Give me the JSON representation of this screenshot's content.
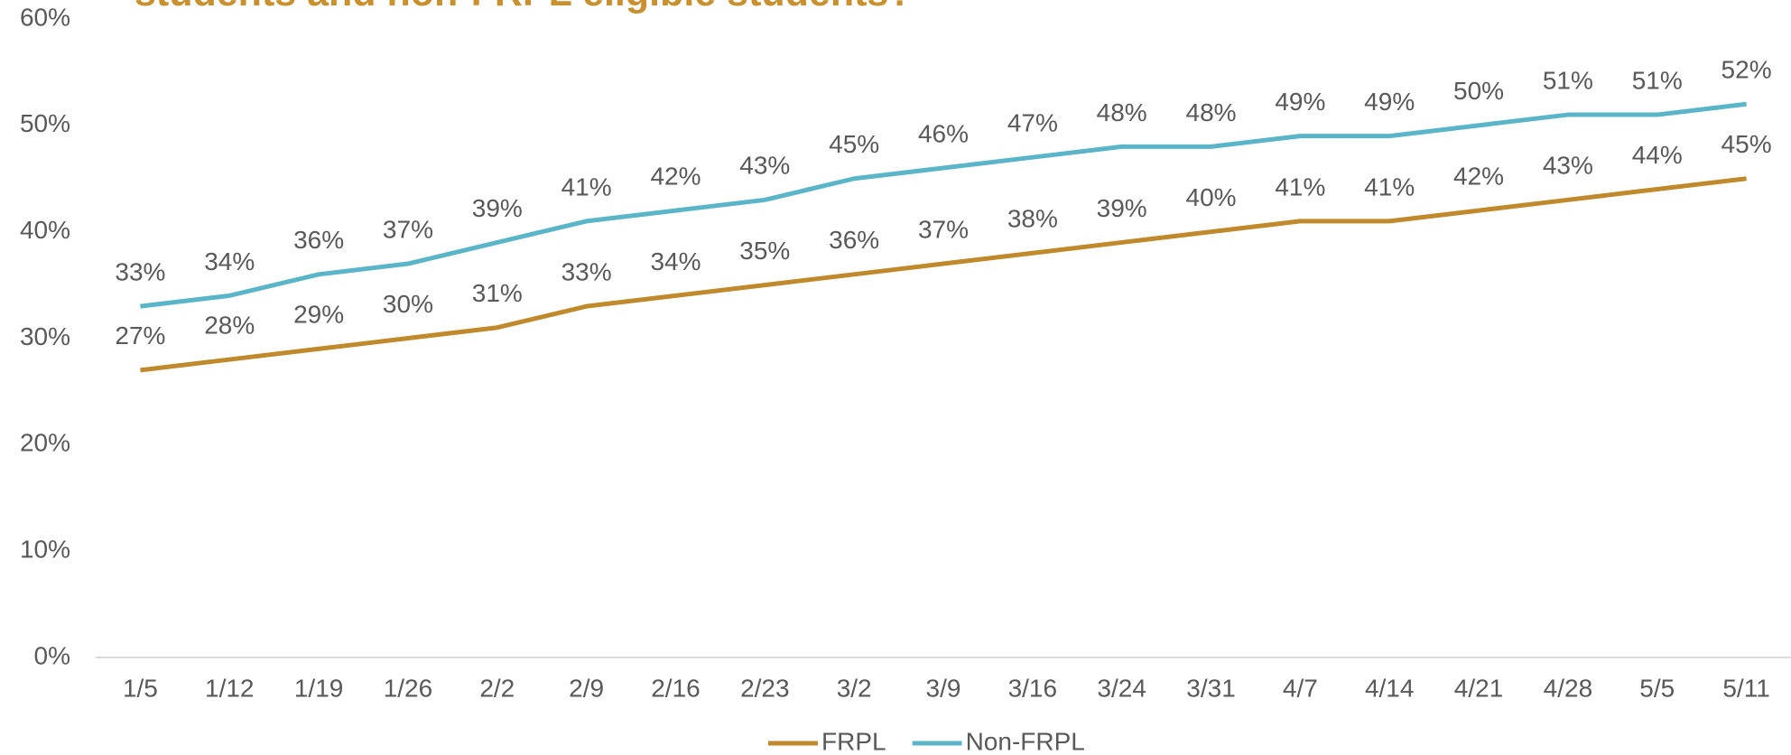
{
  "chart_data": {
    "type": "line",
    "title": "students and non-FRPL eligible students?",
    "categories": [
      "1/5",
      "1/12",
      "1/19",
      "1/26",
      "2/2",
      "2/9",
      "2/16",
      "2/23",
      "3/2",
      "3/9",
      "3/16",
      "3/24",
      "3/31",
      "4/7",
      "4/14",
      "4/21",
      "4/28",
      "5/5",
      "5/11"
    ],
    "series": [
      {
        "name": "FRPL",
        "color": "#c0892b",
        "values": [
          27,
          28,
          29,
          30,
          31,
          33,
          34,
          35,
          36,
          37,
          38,
          39,
          40,
          41,
          41,
          42,
          43,
          44,
          45
        ],
        "value_labels": [
          "27%",
          "28%",
          "29%",
          "30%",
          "31%",
          "33%",
          "34%",
          "35%",
          "36%",
          "37%",
          "38%",
          "39%",
          "40%",
          "41%",
          "41%",
          "42%",
          "43%",
          "44%",
          "45%"
        ]
      },
      {
        "name": "Non-FRPL",
        "color": "#5bb5c8",
        "values": [
          33,
          34,
          36,
          37,
          39,
          41,
          42,
          43,
          45,
          46,
          47,
          48,
          48,
          49,
          49,
          50,
          51,
          51,
          52
        ],
        "value_labels": [
          "33%",
          "34%",
          "36%",
          "37%",
          "39%",
          "41%",
          "42%",
          "43%",
          "45%",
          "46%",
          "47%",
          "48%",
          "48%",
          "49%",
          "49%",
          "50%",
          "51%",
          "51%",
          "52%"
        ]
      }
    ],
    "ylim": [
      0,
      60
    ],
    "yticks": [
      {
        "value": 0,
        "label": "0%"
      },
      {
        "value": 10,
        "label": "10%"
      },
      {
        "value": 20,
        "label": "20%"
      },
      {
        "value": 30,
        "label": "30%"
      },
      {
        "value": 40,
        "label": "40%"
      },
      {
        "value": 50,
        "label": "50%"
      },
      {
        "value": 60,
        "label": "60%"
      }
    ],
    "grid": false,
    "legend": "bottom"
  }
}
